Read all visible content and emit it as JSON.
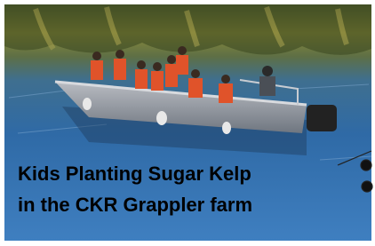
{
  "caption": {
    "lines": [
      "Kids Planting Sugar Kelp",
      "in the CKR Grappler farm"
    ]
  }
}
